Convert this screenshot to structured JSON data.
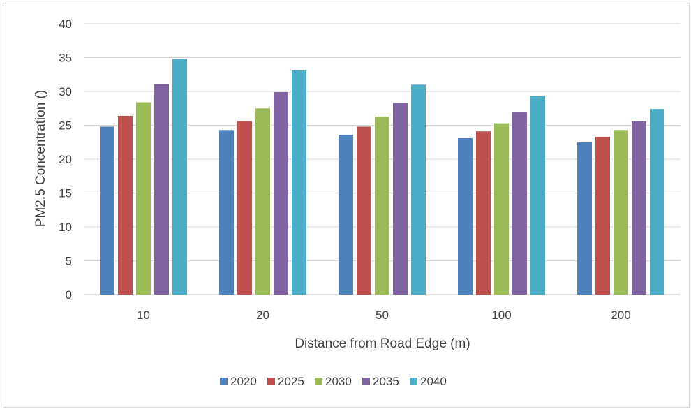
{
  "chart_data": {
    "type": "bar",
    "title": "",
    "xlabel": "Distance from Road Edge (m)",
    "ylabel": "PM2.5 Concentration ()",
    "ylim": [
      0,
      40
    ],
    "yticks": [
      0,
      5,
      10,
      15,
      20,
      25,
      30,
      35,
      40
    ],
    "grid": true,
    "legend_position": "bottom",
    "categories": [
      "10",
      "20",
      "50",
      "100",
      "200"
    ],
    "series": [
      {
        "name": "2020",
        "color": "#4F81BD",
        "values": [
          24.8,
          24.3,
          23.6,
          23.1,
          22.5
        ]
      },
      {
        "name": "2025",
        "color": "#C0504D",
        "values": [
          26.4,
          25.6,
          24.8,
          24.1,
          23.3
        ]
      },
      {
        "name": "2030",
        "color": "#9BBB59",
        "values": [
          28.4,
          27.5,
          26.3,
          25.3,
          24.3
        ]
      },
      {
        "name": "2035",
        "color": "#8064A2",
        "values": [
          31.1,
          29.9,
          28.3,
          27.0,
          25.6
        ]
      },
      {
        "name": "2040",
        "color": "#4BACC6",
        "values": [
          34.8,
          33.1,
          31.0,
          29.3,
          27.4
        ]
      }
    ]
  }
}
